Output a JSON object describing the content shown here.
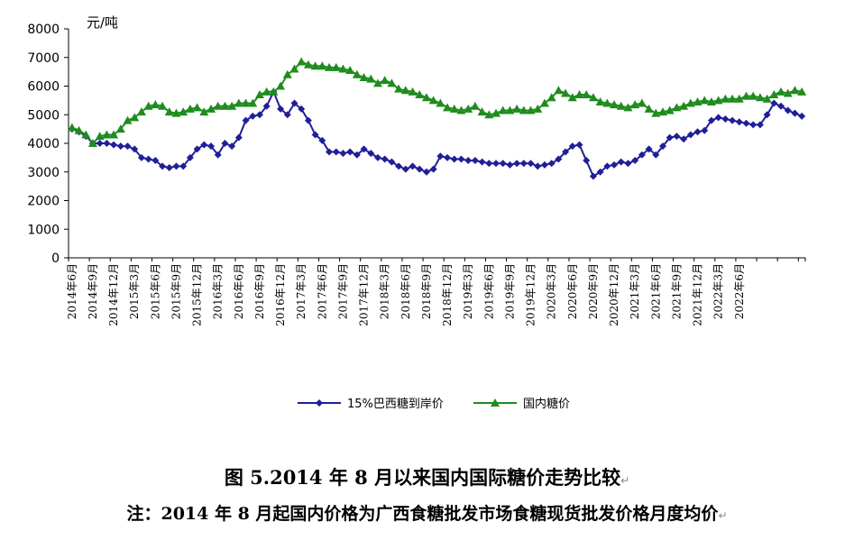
{
  "chart_data": {
    "type": "line",
    "unit_label": "元/吨",
    "ylim": [
      0,
      8000
    ],
    "yticks": [
      0,
      1000,
      2000,
      3000,
      4000,
      5000,
      6000,
      7000,
      8000
    ],
    "grid": false,
    "legend_position": "bottom",
    "tick_labels": [
      "2014年6月",
      "2014年9月",
      "2014年12月",
      "2015年3月",
      "2015年6月",
      "2015年9月",
      "2015年12月",
      "2016年3月",
      "2016年6月",
      "2016年9月",
      "2016年12月",
      "2017年3月",
      "2017年6月",
      "2017年9月",
      "2017年12月",
      "2018年3月",
      "2018年6月",
      "2018年9月",
      "2018年12月",
      "2019年3月",
      "2019年6月",
      "2019年9月",
      "2019年12月",
      "2020年3月",
      "2020年6月",
      "2020年9月",
      "2020年12月",
      "2021年3月",
      "2021年6月",
      "2021年9月",
      "2021年12月",
      "2022年3月",
      "2022年6月"
    ],
    "series": [
      {
        "name": "15%巴西糖到岸价",
        "color": "#1F1F99",
        "marker": "diamond",
        "values": [
          4500,
          4400,
          4250,
          4000,
          4000,
          4000,
          3950,
          3900,
          3900,
          3800,
          3500,
          3450,
          3400,
          3200,
          3150,
          3200,
          3200,
          3500,
          3800,
          3950,
          3900,
          3600,
          4000,
          3900,
          4200,
          4800,
          4950,
          5000,
          5300,
          5800,
          5200,
          5000,
          5400,
          5200,
          4800,
          4300,
          4100,
          3700,
          3700,
          3650,
          3700,
          3600,
          3800,
          3650,
          3500,
          3450,
          3350,
          3200,
          3100,
          3200,
          3100,
          3000,
          3100,
          3550,
          3500,
          3450,
          3450,
          3400,
          3400,
          3350,
          3300,
          3300,
          3300,
          3250,
          3300,
          3300,
          3300,
          3200,
          3250,
          3300,
          3450,
          3700,
          3900,
          3950,
          3400,
          2850,
          3000,
          3200,
          3250,
          3350,
          3300,
          3400,
          3600,
          3800,
          3600,
          3900,
          4200,
          4250,
          4150,
          4300,
          4400,
          4450,
          4800,
          4900,
          4850,
          4800,
          4750,
          4700,
          4650,
          4650,
          5000,
          5400,
          5300,
          5150,
          5050,
          4950
        ]
      },
      {
        "name": "国内糖价",
        "color": "#1E8C1E",
        "marker": "triangle",
        "values": [
          4550,
          4450,
          4300,
          4000,
          4250,
          4300,
          4300,
          4500,
          4800,
          4900,
          5100,
          5300,
          5350,
          5300,
          5100,
          5050,
          5100,
          5200,
          5250,
          5100,
          5200,
          5300,
          5300,
          5300,
          5400,
          5400,
          5400,
          5700,
          5800,
          5800,
          6000,
          6400,
          6600,
          6850,
          6750,
          6700,
          6700,
          6650,
          6650,
          6600,
          6550,
          6400,
          6300,
          6250,
          6100,
          6200,
          6100,
          5900,
          5850,
          5800,
          5700,
          5600,
          5500,
          5400,
          5250,
          5200,
          5150,
          5200,
          5300,
          5100,
          5000,
          5050,
          5150,
          5150,
          5200,
          5150,
          5150,
          5200,
          5400,
          5600,
          5850,
          5750,
          5600,
          5700,
          5700,
          5600,
          5450,
          5400,
          5350,
          5300,
          5250,
          5350,
          5400,
          5200,
          5050,
          5100,
          5150,
          5250,
          5300,
          5400,
          5450,
          5500,
          5450,
          5500,
          5550,
          5550,
          5550,
          5650,
          5650,
          5600,
          5550,
          5700,
          5800,
          5750,
          5850,
          5800
        ]
      }
    ]
  },
  "caption": {
    "title": "图 5.2014 年 8 月以来国内国际糖价走势比较",
    "note": "注：2014 年 8 月起国内价格为广西食糖批发市场食糖现货批发价格月度均价",
    "return_mark": "↵"
  }
}
